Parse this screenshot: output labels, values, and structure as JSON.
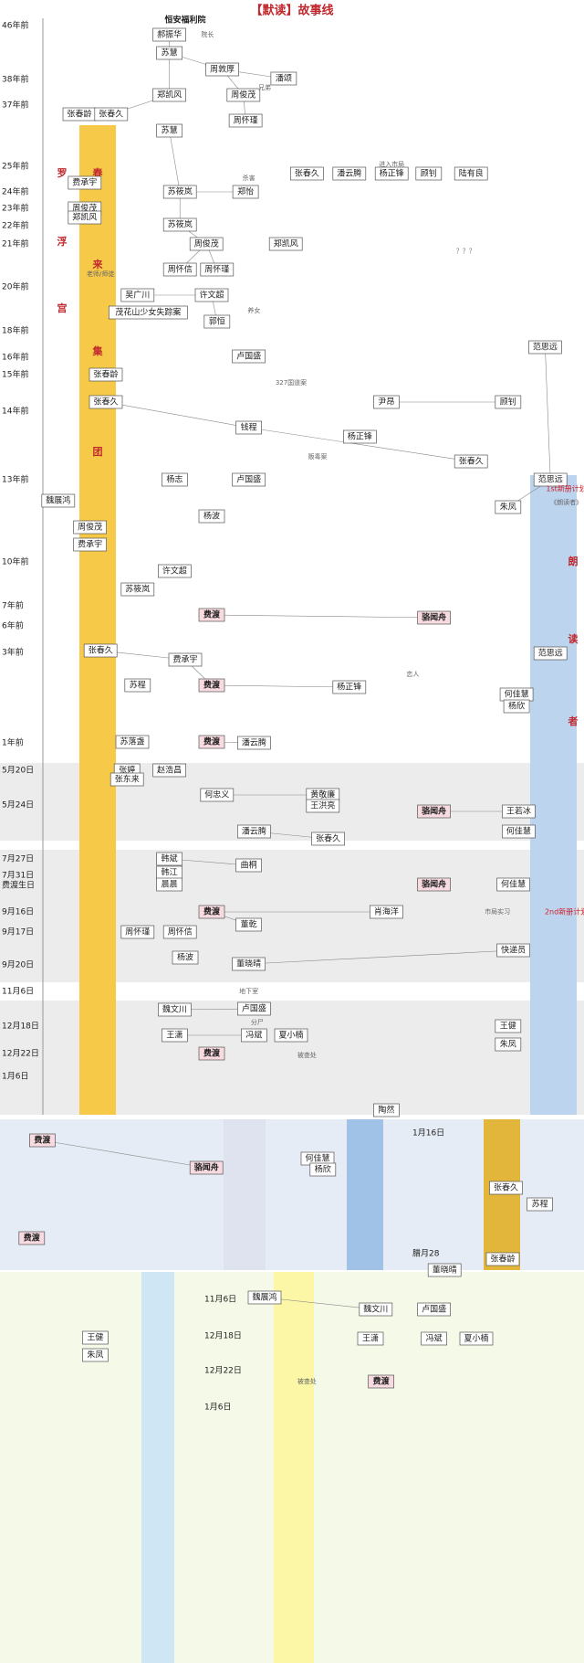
{
  "title": "【默读】故事线",
  "time_labels": [
    "46年前",
    "38年前",
    "37年前",
    "25年前",
    "24年前",
    "23年前",
    "22年前",
    "21年前",
    "20年前",
    "18年前",
    "16年前",
    "15年前",
    "14年前",
    "13年前",
    "10年前",
    "7年前",
    "6年前",
    "3年前",
    "1年前",
    "5月20日",
    "5月24日",
    "7月27日",
    "7月31日",
    "费渡生日",
    "9月16日",
    "9月17日",
    "9月20日",
    "11月6日",
    "12月18日",
    "12月22日",
    "1月6日",
    "1月16日",
    "腊月28",
    "11月6日",
    "12月18日",
    "12月22日",
    "1月6日"
  ],
  "band_labels": {
    "luofu": [
      "罗",
      "浮",
      "宫"
    ],
    "chunlai": [
      "春",
      "来",
      "集",
      "团"
    ],
    "langdu": [
      "朗",
      "读",
      "者"
    ]
  },
  "nodes": [
    "恒安福利院",
    "郝振华",
    "苏慧",
    "周敦厚",
    "潘颂",
    "郑凯风",
    "周俊茂",
    "张春龄",
    "张春久",
    "周怀瑾",
    "苏慧",
    "苏筱岚",
    "郑怡",
    "费承宇",
    "周俊茂",
    "郑凯风",
    "苏筱岚",
    "郑凯风",
    "周俊茂",
    "周怀信",
    "周怀瑾",
    "吴广川",
    "许文超",
    "茂花山少女失踪案",
    "郭恒",
    "卢国盛",
    "张春龄",
    "范思远",
    "尹昂",
    "顾钊",
    "张春久",
    "钱程",
    "杨正锋",
    "张春久",
    "杨志",
    "卢国盛",
    "范思远",
    "朱凤",
    "魏展鸿",
    "杨波",
    "周俊茂",
    "费承宇",
    "许文超",
    "苏筱岚",
    "费渡",
    "骆闻舟",
    "张春久",
    "费承宇",
    "范思远",
    "苏程",
    "费渡",
    "杨正锋",
    "何佳慧",
    "杨欣",
    "苏落盏",
    "费渡",
    "潘云腾",
    "张婷",
    "赵浩昌",
    "张东来",
    "何忠义",
    "黄敬廉",
    "王洪亮",
    "骆闻舟",
    "王若冰",
    "何佳慧",
    "潘云腾",
    "张春久",
    "韩斌",
    "韩江",
    "曲桐",
    "晨晨",
    "骆闻舟",
    "何佳慧",
    "费渡",
    "董乾",
    "肖海洋",
    "周怀瑾",
    "周怀信",
    "杨波",
    "董晓晴",
    "快递员",
    "魏文川",
    "卢国盛",
    "王潇",
    "冯斌",
    "夏小楠",
    "王健",
    "朱凤",
    "费渡",
    "陶然",
    "张春久",
    "潘云腾",
    "杨正锋",
    "顾钊",
    "陆有良",
    "费渡",
    "骆闻舟",
    "何佳慧",
    "杨欣",
    "费渡",
    "张春久",
    "苏程",
    "张春龄",
    "董晓晴",
    "魏展鸿",
    "魏文川",
    "卢国盛",
    "王潇",
    "冯斌",
    "夏小楠",
    "王健",
    "朱凤",
    "费渡"
  ],
  "notes": [
    "院长",
    "兄弟",
    "进入市局",
    "327国道案",
    "1st新册计划",
    "《朗读者》",
    "2nd新册计划",
    "市局实习",
    "被查处",
    "被查处",
    "老师/师徒",
    "养女",
    "？？？",
    "杀害",
    "恋人",
    "分尸",
    "贩毒案",
    "地下室"
  ]
}
